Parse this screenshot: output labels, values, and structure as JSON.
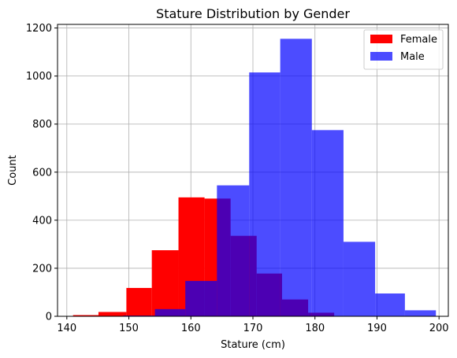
{
  "chart_data": {
    "type": "bar",
    "title": "Stature Distribution by Gender",
    "xlabel": "Stature (cm)",
    "ylabel": "Count",
    "xlim": [
      138.5,
      201.5
    ],
    "ylim": [
      0,
      1215
    ],
    "x_ticks": [
      140,
      150,
      160,
      170,
      180,
      190,
      200
    ],
    "x_tick_labels": [
      "140",
      "150",
      "160",
      "170",
      "180",
      "190",
      "200"
    ],
    "y_ticks": [
      0,
      200,
      400,
      600,
      800,
      1000,
      1200
    ],
    "y_tick_labels": [
      "0",
      "200",
      "400",
      "600",
      "800",
      "1000",
      "1200"
    ],
    "grid": true,
    "legend_position": "top-right",
    "series": [
      {
        "name": "Female",
        "color": "#ff0000",
        "opacity": 1.0,
        "bin_edges": [
          141.0,
          145.1,
          149.6,
          153.7,
          158.0,
          162.2,
          166.4,
          170.6,
          174.7,
          178.9,
          183.1
        ],
        "counts": [
          5,
          18,
          118,
          275,
          495,
          490,
          335,
          178,
          70,
          15
        ]
      },
      {
        "name": "Male",
        "color": "#0000ff",
        "opacity": 0.7,
        "bin_edges": [
          149.1,
          154.2,
          159.1,
          164.2,
          169.4,
          174.4,
          179.5,
          184.6,
          189.7,
          194.5,
          199.5
        ],
        "counts": [
          3,
          30,
          147,
          545,
          1015,
          1155,
          775,
          310,
          95,
          25
        ]
      }
    ]
  }
}
